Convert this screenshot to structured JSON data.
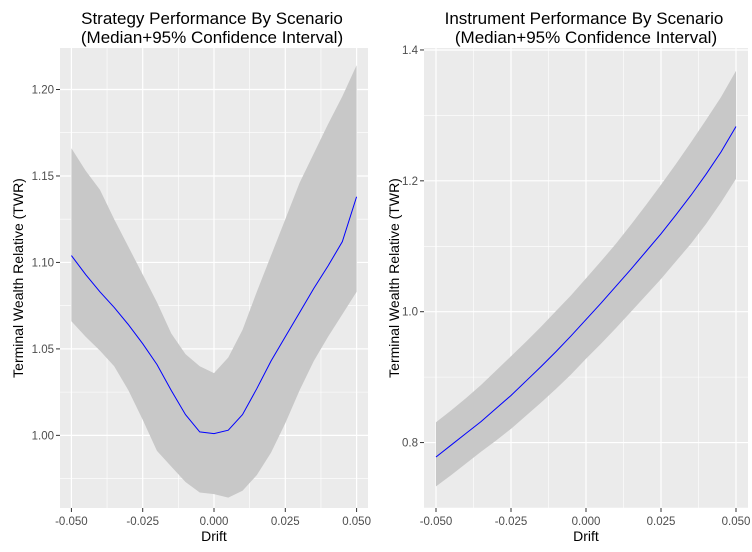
{
  "chart_data": [
    {
      "type": "line",
      "title": [
        "Strategy Performance By Scenario",
        "(Median+95% Confidence Interval)"
      ],
      "xlabel": "Drift",
      "ylabel": "Terminal Wealth Relative (TWR)",
      "xlim": [
        -0.054,
        0.054
      ],
      "ylim": [
        0.958,
        1.224
      ],
      "x_ticks": [
        -0.05,
        -0.025,
        0.0,
        0.025,
        0.05
      ],
      "x_tick_labels": [
        "-0.050",
        "-0.025",
        "0.000",
        "0.025",
        "0.050"
      ],
      "y_ticks": [
        1.0,
        1.05,
        1.1,
        1.15,
        1.2
      ],
      "y_tick_labels": [
        "1.00",
        "1.05",
        "1.10",
        "1.15",
        "1.20"
      ],
      "grid": true,
      "panel_background": "#ebebeb",
      "ribbon_color": "#c8c8c8",
      "line_color": "#0000ff",
      "x": [
        -0.05,
        -0.045,
        -0.04,
        -0.035,
        -0.03,
        -0.025,
        -0.02,
        -0.015,
        -0.01,
        -0.005,
        0.0,
        0.005,
        0.01,
        0.015,
        0.02,
        0.025,
        0.03,
        0.035,
        0.04,
        0.045,
        0.05
      ],
      "median": [
        1.104,
        1.093,
        1.083,
        1.074,
        1.064,
        1.053,
        1.041,
        1.026,
        1.012,
        1.002,
        1.001,
        1.003,
        1.012,
        1.027,
        1.043,
        1.057,
        1.071,
        1.085,
        1.098,
        1.112,
        1.138
      ],
      "lower": [
        1.066,
        1.057,
        1.049,
        1.04,
        1.026,
        1.009,
        0.991,
        0.982,
        0.973,
        0.967,
        0.966,
        0.964,
        0.968,
        0.977,
        0.99,
        1.007,
        1.026,
        1.043,
        1.057,
        1.07,
        1.083
      ],
      "upper": [
        1.166,
        1.153,
        1.142,
        1.125,
        1.109,
        1.093,
        1.077,
        1.059,
        1.047,
        1.04,
        1.036,
        1.045,
        1.061,
        1.083,
        1.104,
        1.125,
        1.146,
        1.163,
        1.18,
        1.196,
        1.214
      ]
    },
    {
      "type": "line",
      "title": [
        "Instrument Performance By Scenario",
        "(Median+95% Confidence Interval)"
      ],
      "xlabel": "Drift",
      "ylabel": "Terminal Wealth Relative (TWR)",
      "xlim": [
        -0.054,
        0.054
      ],
      "ylim": [
        0.7,
        1.403
      ],
      "x_ticks": [
        -0.05,
        -0.025,
        0.0,
        0.025,
        0.05
      ],
      "x_tick_labels": [
        "-0.050",
        "-0.025",
        "0.000",
        "0.025",
        "0.050"
      ],
      "y_ticks": [
        0.8,
        1.0,
        1.2,
        1.4
      ],
      "y_tick_labels": [
        "0.8",
        "1.0",
        "1.2",
        "1.4"
      ],
      "grid": true,
      "panel_background": "#ebebeb",
      "ribbon_color": "#c8c8c8",
      "line_color": "#0000ff",
      "x": [
        -0.05,
        -0.045,
        -0.04,
        -0.035,
        -0.03,
        -0.025,
        -0.02,
        -0.015,
        -0.01,
        -0.005,
        0.0,
        0.005,
        0.01,
        0.015,
        0.02,
        0.025,
        0.03,
        0.035,
        0.04,
        0.045,
        0.05
      ],
      "median": [
        0.778,
        0.796,
        0.814,
        0.832,
        0.852,
        0.872,
        0.894,
        0.916,
        0.939,
        0.963,
        0.988,
        1.013,
        1.039,
        1.065,
        1.092,
        1.119,
        1.148,
        1.178,
        1.21,
        1.244,
        1.283
      ],
      "lower": [
        0.733,
        0.75,
        0.768,
        0.786,
        0.803,
        0.821,
        0.841,
        0.861,
        0.882,
        0.904,
        0.928,
        0.951,
        0.975,
        1.0,
        1.025,
        1.05,
        1.077,
        1.104,
        1.134,
        1.167,
        1.203
      ],
      "upper": [
        0.831,
        0.849,
        0.868,
        0.888,
        0.91,
        0.932,
        0.954,
        0.977,
        1.001,
        1.025,
        1.051,
        1.077,
        1.104,
        1.133,
        1.163,
        1.194,
        1.226,
        1.259,
        1.293,
        1.328,
        1.368
      ]
    }
  ]
}
